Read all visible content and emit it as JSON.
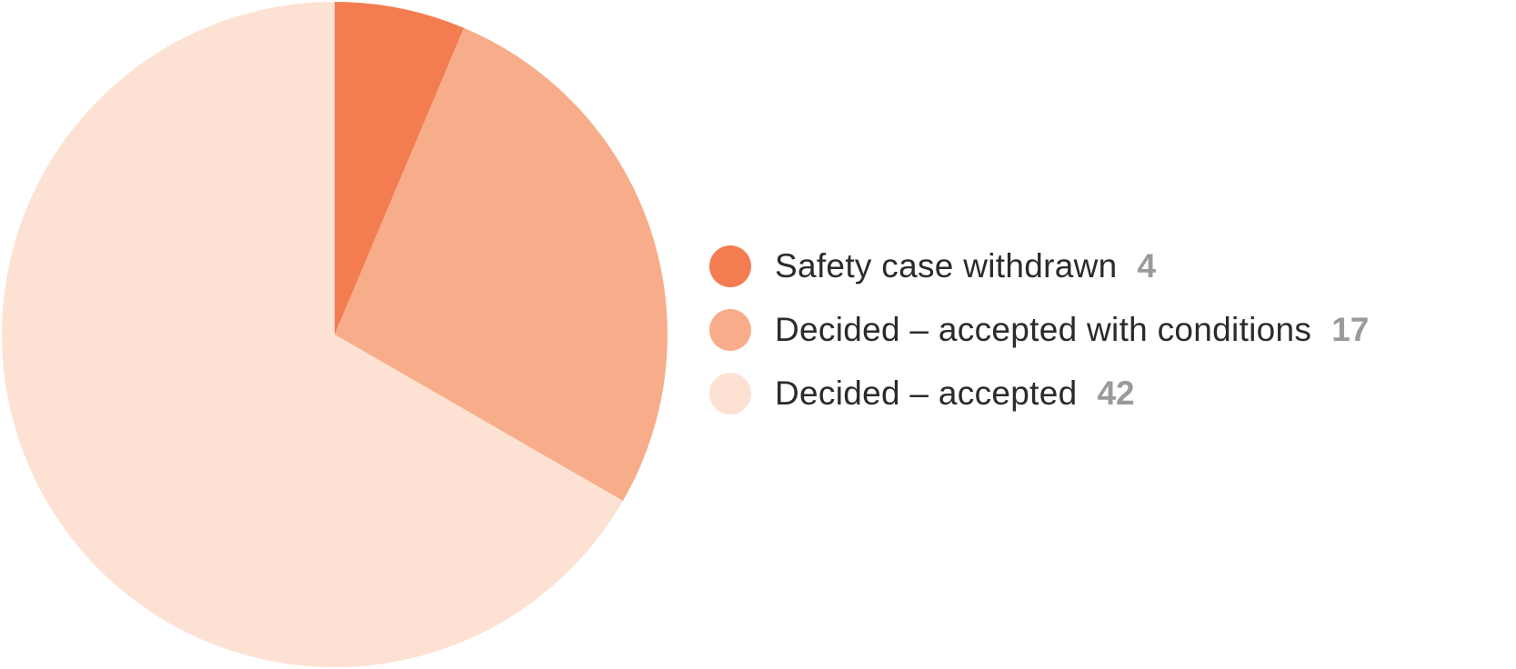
{
  "chart_data": {
    "type": "pie",
    "title": "",
    "categories": [
      "Safety case withdrawn",
      "Decided – accepted with conditions",
      "Decided – accepted"
    ],
    "values": [
      4,
      17,
      42
    ],
    "colors": [
      "#f37c51",
      "#f8ad8a",
      "#fde1d3"
    ],
    "start_angle": "12 o'clock",
    "direction": "clockwise",
    "legend_position": "right"
  },
  "legend": {
    "items": [
      {
        "label": "Safety case withdrawn",
        "value": "4",
        "color": "#f37c51"
      },
      {
        "label": "Decided – accepted with conditions",
        "value": "17",
        "color": "#f8ad8a"
      },
      {
        "label": "Decided – accepted",
        "value": "42",
        "color": "#fde1d3"
      }
    ]
  }
}
